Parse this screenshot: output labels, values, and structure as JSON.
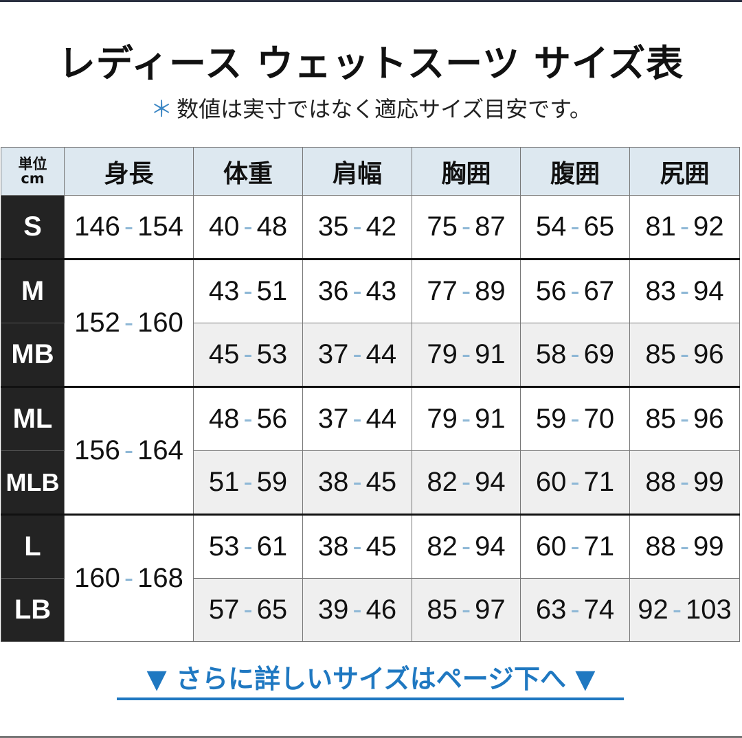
{
  "title": "レディース ウェットスーツ サイズ表",
  "subtitle": {
    "mark": "＊",
    "text": "数値は実寸ではなく適応サイズ目安です。"
  },
  "table": {
    "unit": [
      "単位",
      "cm"
    ],
    "headers": [
      "身長",
      "体重",
      "肩幅",
      "胸囲",
      "腹囲",
      "尻囲"
    ],
    "rows": [
      {
        "size": "S",
        "height": [
          "146",
          "154"
        ],
        "cells": [
          [
            "40",
            "48"
          ],
          [
            "35",
            "42"
          ],
          [
            "75",
            "87"
          ],
          [
            "54",
            "65"
          ],
          [
            "81",
            "92"
          ]
        ]
      },
      {
        "size": "M",
        "height": [
          "152",
          "160"
        ],
        "cells": [
          [
            "43",
            "51"
          ],
          [
            "36",
            "43"
          ],
          [
            "77",
            "89"
          ],
          [
            "56",
            "67"
          ],
          [
            "83",
            "94"
          ]
        ]
      },
      {
        "size": "MB",
        "cells": [
          [
            "45",
            "53"
          ],
          [
            "37",
            "44"
          ],
          [
            "79",
            "91"
          ],
          [
            "58",
            "69"
          ],
          [
            "85",
            "96"
          ]
        ]
      },
      {
        "size": "ML",
        "height": [
          "156",
          "164"
        ],
        "cells": [
          [
            "48",
            "56"
          ],
          [
            "37",
            "44"
          ],
          [
            "79",
            "91"
          ],
          [
            "59",
            "70"
          ],
          [
            "85",
            "96"
          ]
        ]
      },
      {
        "size": "MLB",
        "cells": [
          [
            "51",
            "59"
          ],
          [
            "38",
            "45"
          ],
          [
            "82",
            "94"
          ],
          [
            "60",
            "71"
          ],
          [
            "88",
            "99"
          ]
        ]
      },
      {
        "size": "L",
        "height": [
          "160",
          "168"
        ],
        "cells": [
          [
            "53",
            "61"
          ],
          [
            "38",
            "45"
          ],
          [
            "82",
            "94"
          ],
          [
            "60",
            "71"
          ],
          [
            "88",
            "99"
          ]
        ]
      },
      {
        "size": "LB",
        "cells": [
          [
            "57",
            "65"
          ],
          [
            "39",
            "46"
          ],
          [
            "85",
            "97"
          ],
          [
            "63",
            "74"
          ],
          [
            "92",
            "103"
          ]
        ]
      }
    ],
    "dash": "-"
  },
  "link": {
    "text": "▼ さらに詳しいサイズはページ下へ ▼"
  },
  "colors": {
    "accent": "#1f78c1",
    "header_bg": "#dde8f0",
    "size_bg": "#232323",
    "dash": "#8fb8d6"
  }
}
